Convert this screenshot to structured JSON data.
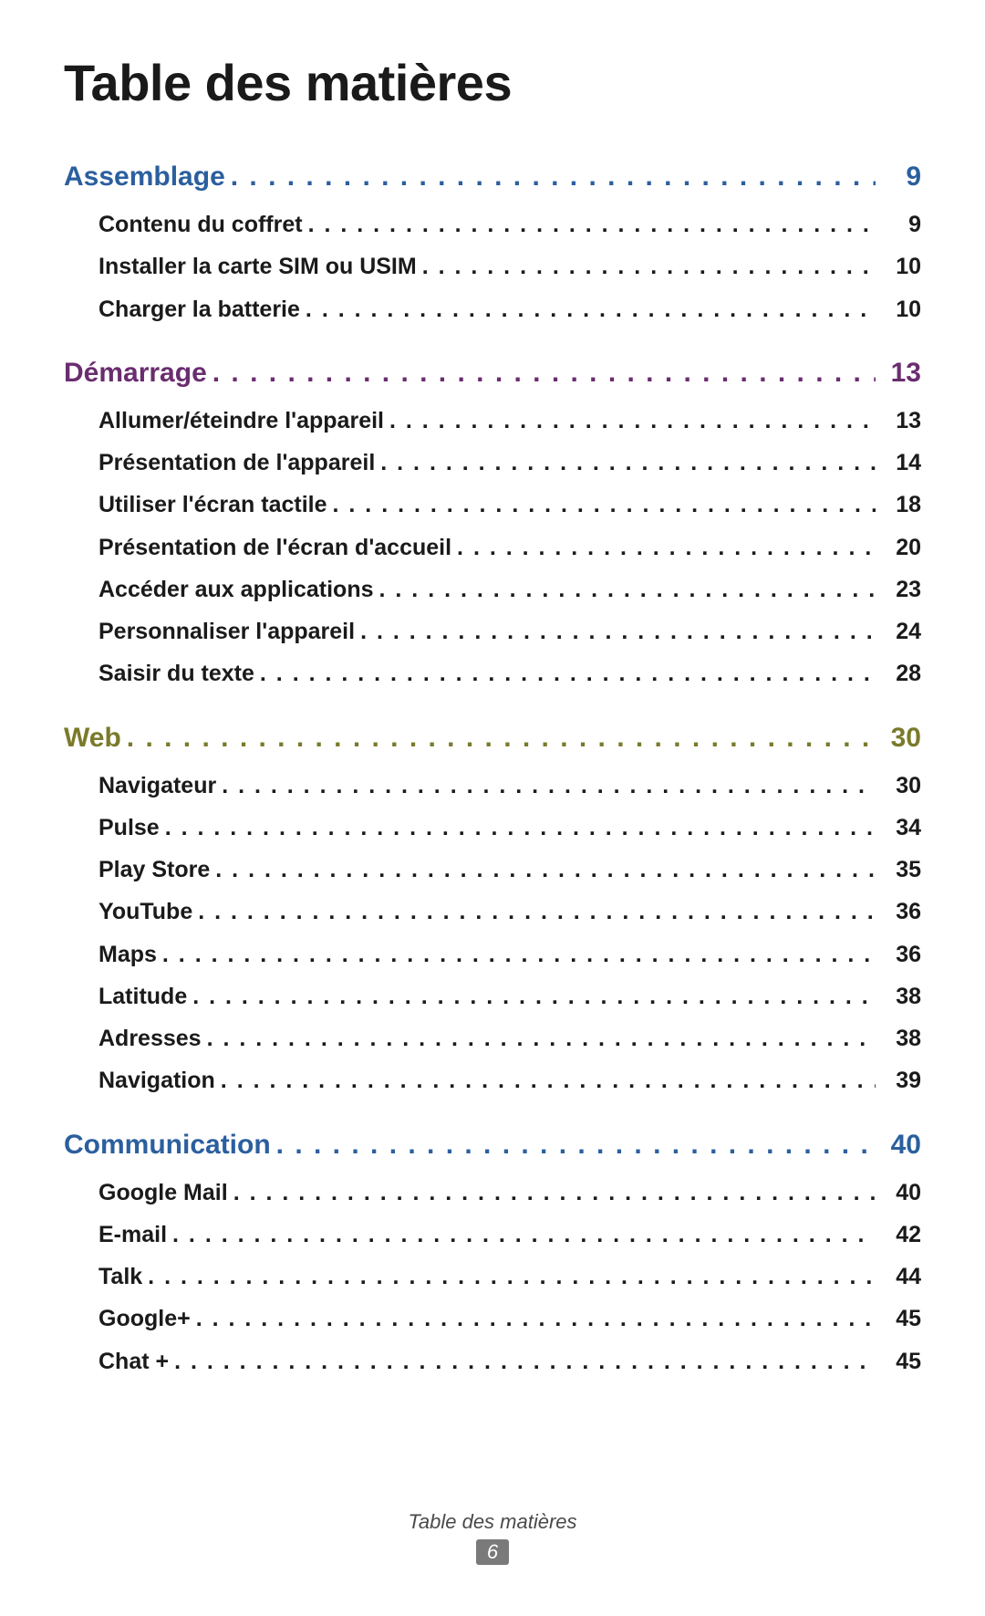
{
  "title": "Table des matières",
  "footer_label": "Table des matières",
  "page_number": "6",
  "colors": {
    "section_colors": [
      "#2b5f9e",
      "#6a2d6f",
      "#7a7a2b",
      "#2b5f9e"
    ],
    "item_text": "#1a1a1a",
    "title_text": "#1a1a1a",
    "footer_text": "#4a4a4a",
    "badge_bg": "#7a7a7a",
    "badge_text": "#ffffff",
    "background": "#ffffff"
  },
  "typography": {
    "title_fontsize": 56,
    "section_fontsize": 30,
    "item_fontsize": 25,
    "footer_fontsize": 22,
    "title_weight": 700,
    "section_weight": 700,
    "item_weight": 700
  },
  "sections": [
    {
      "title": "Assemblage",
      "page": "9",
      "items": [
        {
          "title": "Contenu du coffret",
          "page": "9"
        },
        {
          "title": "Installer la carte SIM ou USIM",
          "page": "10"
        },
        {
          "title": "Charger la batterie",
          "page": "10"
        }
      ]
    },
    {
      "title": "Démarrage",
      "page": "13",
      "items": [
        {
          "title": "Allumer/éteindre l'appareil",
          "page": "13"
        },
        {
          "title": "Présentation de l'appareil",
          "page": "14"
        },
        {
          "title": "Utiliser l'écran tactile",
          "page": "18"
        },
        {
          "title": "Présentation de l'écran d'accueil",
          "page": "20"
        },
        {
          "title": "Accéder aux applications",
          "page": "23"
        },
        {
          "title": "Personnaliser l'appareil",
          "page": "24"
        },
        {
          "title": "Saisir du texte",
          "page": "28"
        }
      ]
    },
    {
      "title": "Web",
      "page": "30",
      "items": [
        {
          "title": "Navigateur",
          "page": "30"
        },
        {
          "title": "Pulse",
          "page": "34"
        },
        {
          "title": "Play Store",
          "page": "35"
        },
        {
          "title": "YouTube",
          "page": "36"
        },
        {
          "title": "Maps",
          "page": "36"
        },
        {
          "title": "Latitude",
          "page": "38"
        },
        {
          "title": "Adresses",
          "page": "38"
        },
        {
          "title": "Navigation",
          "page": "39"
        }
      ]
    },
    {
      "title": "Communication",
      "page": "40",
      "items": [
        {
          "title": "Google Mail",
          "page": "40"
        },
        {
          "title": "E-mail",
          "page": "42"
        },
        {
          "title": "Talk",
          "page": "44"
        },
        {
          "title": "Google+",
          "page": "45"
        },
        {
          "title": "Chat +",
          "page": "45"
        }
      ]
    }
  ]
}
